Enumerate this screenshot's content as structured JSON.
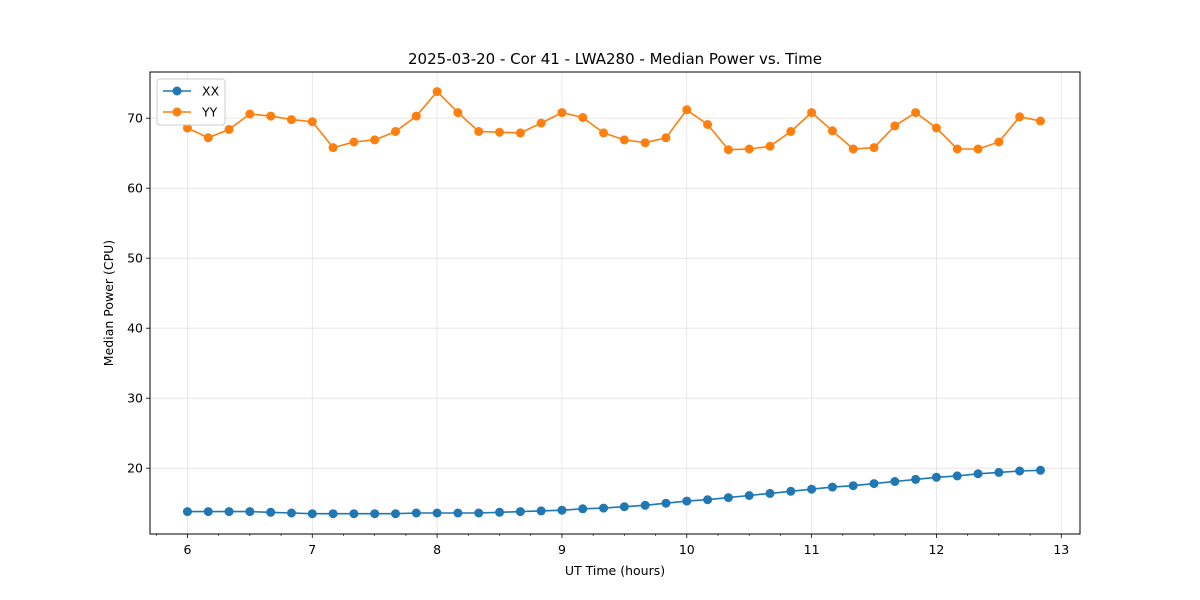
{
  "chart_data": {
    "type": "line",
    "title": "2025-03-20 - Cor 41 - LWA280 - Median Power vs. Time",
    "xlabel": "UT Time (hours)",
    "ylabel": "Median Power (CPU)",
    "xlim": [
      5.7,
      13.15
    ],
    "ylim": [
      10.6,
      76.6
    ],
    "xticks": [
      6,
      7,
      8,
      9,
      10,
      11,
      12,
      13
    ],
    "yticks": [
      20,
      30,
      40,
      50,
      60,
      70
    ],
    "grid": true,
    "legend_position": "top-left",
    "x": [
      6.0,
      6.1667,
      6.3333,
      6.5,
      6.6667,
      6.8333,
      7.0,
      7.1667,
      7.3333,
      7.5,
      7.6667,
      7.8333,
      8.0,
      8.1667,
      8.3333,
      8.5,
      8.6667,
      8.8333,
      9.0,
      9.1667,
      9.3333,
      9.5,
      9.6667,
      9.8333,
      10.0,
      10.1667,
      10.3333,
      10.5,
      10.6667,
      10.8333,
      11.0,
      11.1667,
      11.3333,
      11.5,
      11.6667,
      11.8333,
      12.0,
      12.1667,
      12.3333,
      12.5,
      12.6667,
      12.8333
    ],
    "series": [
      {
        "name": "XX",
        "color": "#1f77b4",
        "values": [
          13.8,
          13.8,
          13.8,
          13.8,
          13.7,
          13.6,
          13.5,
          13.5,
          13.5,
          13.5,
          13.5,
          13.6,
          13.6,
          13.6,
          13.6,
          13.7,
          13.8,
          13.9,
          14.0,
          14.2,
          14.3,
          14.5,
          14.7,
          15.0,
          15.3,
          15.5,
          15.8,
          16.1,
          16.4,
          16.7,
          17.0,
          17.3,
          17.5,
          17.8,
          18.1,
          18.4,
          18.7,
          18.9,
          19.2,
          19.4,
          19.6,
          19.7
        ]
      },
      {
        "name": "YY",
        "color": "#ff7f0e",
        "values": [
          68.6,
          67.2,
          68.4,
          70.6,
          70.3,
          69.8,
          69.5,
          65.8,
          66.6,
          66.9,
          68.1,
          70.3,
          73.8,
          70.8,
          68.1,
          68.0,
          67.9,
          69.3,
          70.8,
          70.1,
          67.9,
          66.9,
          66.5,
          67.2,
          71.2,
          69.1,
          65.5,
          65.6,
          66.0,
          68.1,
          70.8,
          68.2,
          65.6,
          65.8,
          68.9,
          70.8,
          68.6,
          65.6,
          65.6,
          66.6,
          70.2,
          69.6
        ]
      }
    ]
  }
}
